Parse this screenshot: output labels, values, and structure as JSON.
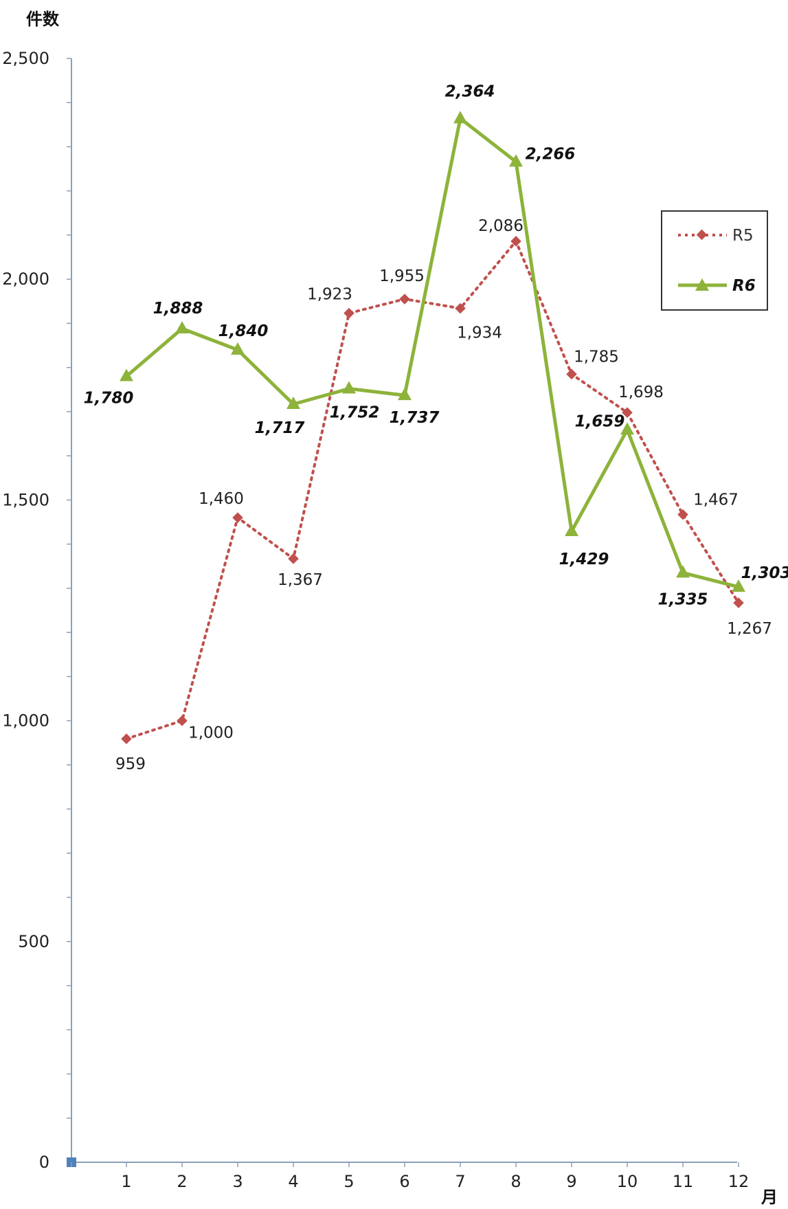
{
  "chart_data": {
    "type": "line",
    "title": "",
    "ylabel": "件数",
    "xlabel": "月",
    "categories": [
      "1",
      "2",
      "3",
      "4",
      "5",
      "6",
      "7",
      "8",
      "9",
      "10",
      "11",
      "12"
    ],
    "ylim": [
      0,
      2500
    ],
    "yticks": [
      0,
      500,
      1000,
      1500,
      2000,
      2500
    ],
    "ytick_labels": [
      "0",
      "500",
      "1,000",
      "1,500",
      "2,000",
      "2,500"
    ],
    "legend_position": "right",
    "grid": false,
    "series": [
      {
        "name": "R5",
        "style": "dotted",
        "marker": "diamond",
        "color": "#c0504d",
        "values": [
          959,
          1000,
          1460,
          1367,
          1923,
          1955,
          1934,
          2086,
          1785,
          1698,
          1467,
          1267
        ],
        "labels": [
          "959",
          "1,000",
          "1,460",
          "1,367",
          "1,923",
          "1,955",
          "1,934",
          "2,086",
          "1,785",
          "1,698",
          "1,467",
          "1,267"
        ]
      },
      {
        "name": "R6",
        "style": "solid",
        "marker": "triangle",
        "color": "#8db33a",
        "values": [
          1780,
          1888,
          1840,
          1717,
          1752,
          1737,
          2364,
          2266,
          1429,
          1659,
          1335,
          1303
        ],
        "labels": [
          "1,780",
          "1,888",
          "1,840",
          "1,717",
          "1,752",
          "1,737",
          "2,364",
          "2,266",
          "1,429",
          "1,659",
          "1,335",
          "1,303"
        ]
      }
    ]
  }
}
